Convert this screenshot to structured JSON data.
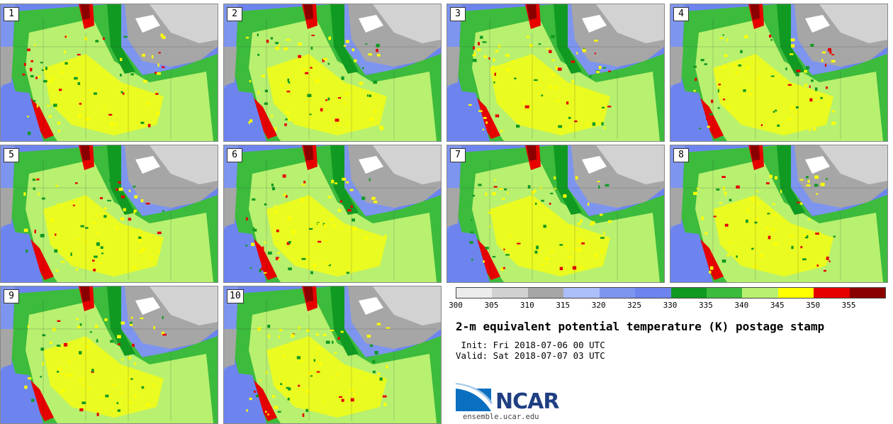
{
  "panels": [
    "1",
    "2",
    "3",
    "4",
    "5",
    "6",
    "7",
    "8",
    "9",
    "10"
  ],
  "legend": {
    "colors": [
      "#ececec",
      "#d2d2d2",
      "#a6a6a6",
      "#adbffa",
      "#7e95ef",
      "#6d84ee",
      "#119a22",
      "#3cbb3c",
      "#b8f070",
      "#ffff00",
      "#e60000",
      "#8a0000"
    ],
    "ticks": [
      "300",
      "305",
      "310",
      "315",
      "320",
      "325",
      "330",
      "335",
      "340",
      "345",
      "350",
      "355"
    ]
  },
  "title": "2-m equivalent potential temperature (K) postage stamp",
  "init": " Init: Fri 2018-07-06 00 UTC",
  "valid": "Valid: Sat 2018-07-07 03 UTC",
  "logo": {
    "text": "NCAR",
    "url": "ensemble.ucar.edu"
  }
}
